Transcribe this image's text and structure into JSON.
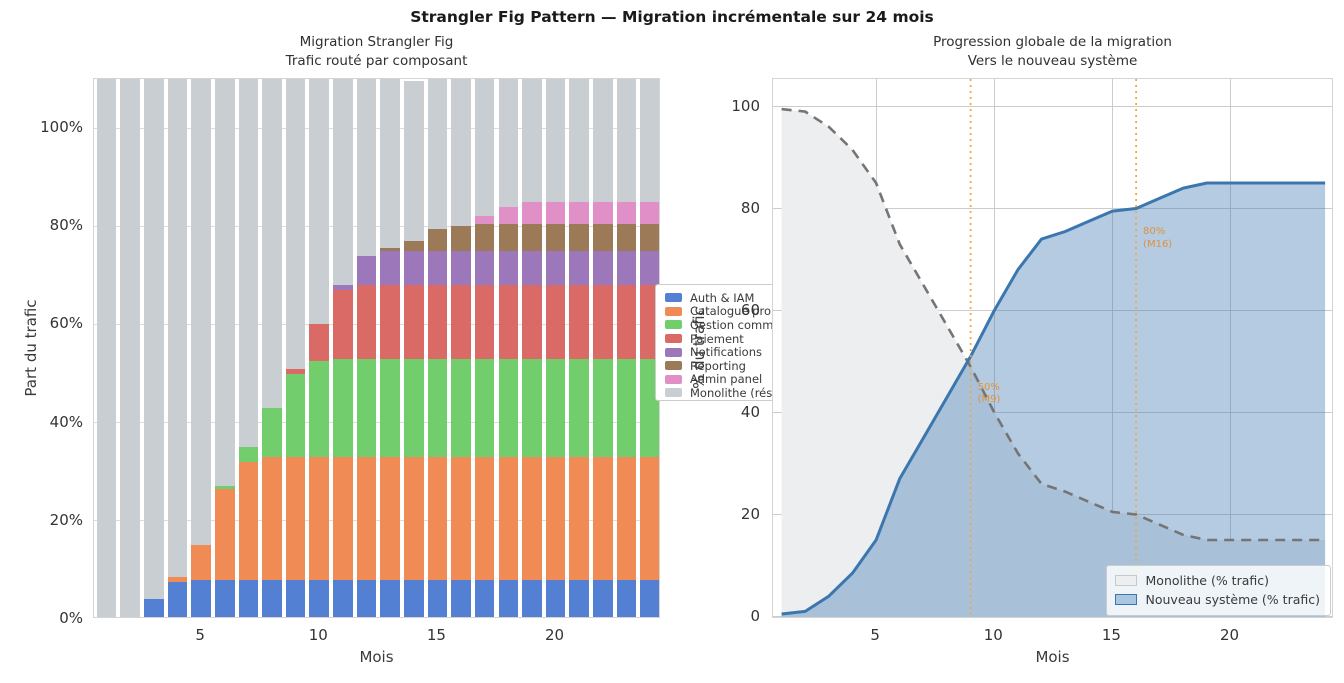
{
  "figure": {
    "title": "Strangler Fig Pattern — Migration incrémentale sur 24 mois",
    "background": "#ffffff"
  },
  "chart_data": [
    {
      "type": "bar",
      "stacked": true,
      "title_line1": "Migration Strangler Fig",
      "title_line2": "Trafic routé par composant",
      "xlabel": "Mois",
      "ylabel": "Part du trafic",
      "x": [
        1,
        2,
        3,
        4,
        5,
        6,
        7,
        8,
        9,
        10,
        11,
        12,
        13,
        14,
        15,
        16,
        17,
        18,
        19,
        20,
        21,
        22,
        23,
        24
      ],
      "xticks": [
        5,
        10,
        15,
        20
      ],
      "ytick_values": [
        0,
        20,
        40,
        60,
        80,
        100
      ],
      "ytick_labels": [
        "0%",
        "20%",
        "40%",
        "60%",
        "80%",
        "100%"
      ],
      "ylim": [
        0,
        110
      ],
      "grid": true,
      "legend_position": "outside-right-center",
      "series": [
        {
          "name": "Auth & IAM",
          "color": "#5380d2",
          "values": [
            0,
            0.5,
            4,
            7.5,
            8,
            8,
            8,
            8,
            8,
            8,
            8,
            8,
            8,
            8,
            8,
            8,
            8,
            8,
            8,
            8,
            8,
            8,
            8,
            8
          ]
        },
        {
          "name": "Catalogue pro",
          "color": "#f08b55",
          "values": [
            0,
            0,
            0,
            1,
            7,
            18.5,
            24,
            25,
            25,
            25,
            25,
            25,
            25,
            25,
            25,
            25,
            25,
            25,
            25,
            25,
            25,
            25,
            25,
            25
          ]
        },
        {
          "name": "Gestion comm",
          "color": "#72ce6c",
          "values": [
            0,
            0,
            0,
            0,
            0,
            0.5,
            3,
            10,
            17,
            19.5,
            20,
            20,
            20,
            20,
            20,
            20,
            20,
            20,
            20,
            20,
            20,
            20,
            20,
            20
          ]
        },
        {
          "name": "Paiement",
          "color": "#d96a66",
          "values": [
            0,
            0,
            0,
            0,
            0,
            0,
            0,
            0,
            1,
            7.5,
            14,
            15,
            15,
            15,
            15,
            15,
            15,
            15,
            15,
            15,
            15,
            15,
            15,
            15
          ]
        },
        {
          "name": "Notifications",
          "color": "#9c77ba",
          "values": [
            0,
            0,
            0,
            0,
            0,
            0,
            0,
            0,
            0,
            0,
            1,
            6,
            7,
            7,
            7,
            7,
            7,
            7,
            7,
            7,
            7,
            7,
            7,
            7
          ]
        },
        {
          "name": "Reporting",
          "color": "#9c7a57",
          "values": [
            0,
            0,
            0,
            0,
            0,
            0,
            0,
            0,
            0,
            0,
            0,
            0,
            0.5,
            2,
            4.5,
            5,
            5.5,
            5.5,
            5.5,
            5.5,
            5.5,
            5.5,
            5.5,
            5.5
          ]
        },
        {
          "name": "Admin panel",
          "color": "#e08fc7",
          "values": [
            0,
            0,
            0,
            0,
            0,
            0,
            0,
            0,
            0,
            0,
            0,
            0,
            0,
            0,
            0,
            0,
            1.5,
            3.5,
            4.5,
            4.5,
            4.5,
            4.5,
            4.5,
            4.5
          ]
        },
        {
          "name": "Monolithe (rés",
          "color": "#c9ced2",
          "values": [
            110,
            109.5,
            106,
            101.5,
            95,
            83,
            75,
            67,
            59,
            50,
            42,
            36,
            34.5,
            32.5,
            30.5,
            30,
            28,
            26,
            25,
            25,
            25,
            25,
            25,
            25
          ]
        }
      ]
    },
    {
      "type": "area",
      "title_line1": "Progression globale de la migration",
      "title_line2": "Vers le nouveau système",
      "xlabel": "Mois",
      "ylabel": "% du trafic",
      "x": [
        1,
        2,
        3,
        4,
        5,
        6,
        7,
        8,
        9,
        10,
        11,
        12,
        13,
        14,
        15,
        16,
        17,
        18,
        19,
        20,
        21,
        22,
        23,
        24
      ],
      "xticks": [
        5,
        10,
        15,
        20
      ],
      "ytick_values": [
        0,
        20,
        40,
        60,
        80,
        100
      ],
      "ytick_labels": [
        "0",
        "20",
        "40",
        "60",
        "80",
        "100"
      ],
      "ylim": [
        0,
        105
      ],
      "grid": true,
      "legend_position": "lower-right",
      "series": [
        {
          "name": "Monolithe (% trafic)",
          "line_style": "dashed",
          "color": "#757575",
          "fill": "#eceef0",
          "swatch": "#eceef0",
          "swatch_border": "#c9c9c9",
          "values": [
            99.5,
            99,
            96,
            91.5,
            85,
            73,
            65,
            57,
            49,
            40,
            32,
            26,
            24.5,
            22.5,
            20.5,
            20,
            18,
            16,
            15,
            15,
            15,
            15,
            15,
            15
          ]
        },
        {
          "name": "Nouveau système (% trafic)",
          "line_style": "solid",
          "color": "#3b76af",
          "fill": "rgba(59,118,175,0.38)",
          "swatch": "#a9c6e2",
          "swatch_border": "#3b76af",
          "values": [
            0.5,
            1,
            4,
            8.5,
            15,
            27,
            35,
            43,
            51,
            60,
            68,
            74,
            75.5,
            77.5,
            79.5,
            80,
            82,
            84,
            85,
            85,
            85,
            85,
            85,
            85
          ]
        }
      ],
      "vlines": [
        {
          "month": 9,
          "color": "#f2a83c",
          "style": "dotted"
        },
        {
          "month": 16,
          "color": "#f2a83c",
          "style": "dotted"
        }
      ],
      "annotations": [
        {
          "line1": "50%",
          "line2": "(M9)",
          "month": 9,
          "value": 46,
          "color": "#e0923c"
        },
        {
          "line1": "80%",
          "line2": "(M16)",
          "month": 16,
          "value": 76.5,
          "color": "#e0923c"
        }
      ]
    }
  ]
}
